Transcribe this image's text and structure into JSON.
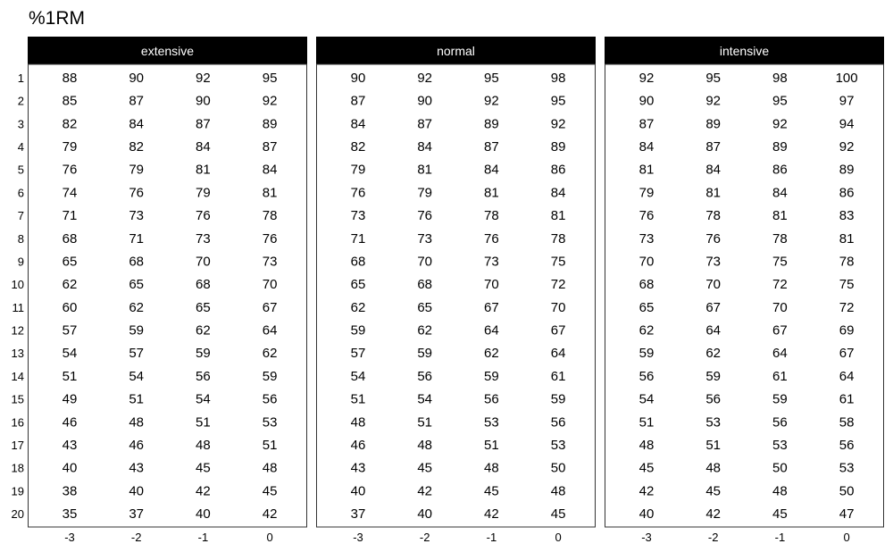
{
  "chart_data": {
    "type": "table",
    "title": "%1RM",
    "x_ticks": [
      "-3",
      "-2",
      "-1",
      "0"
    ],
    "y_ticks": [
      "1",
      "2",
      "3",
      "4",
      "5",
      "6",
      "7",
      "8",
      "9",
      "10",
      "11",
      "12",
      "13",
      "14",
      "15",
      "16",
      "17",
      "18",
      "19",
      "20"
    ],
    "strip_color": "#000000",
    "strip_text_color": "#ffffff",
    "panels": [
      {
        "name": "extensive",
        "values": [
          [
            88,
            90,
            92,
            95
          ],
          [
            85,
            87,
            90,
            92
          ],
          [
            82,
            84,
            87,
            89
          ],
          [
            79,
            82,
            84,
            87
          ],
          [
            76,
            79,
            81,
            84
          ],
          [
            74,
            76,
            79,
            81
          ],
          [
            71,
            73,
            76,
            78
          ],
          [
            68,
            71,
            73,
            76
          ],
          [
            65,
            68,
            70,
            73
          ],
          [
            62,
            65,
            68,
            70
          ],
          [
            60,
            62,
            65,
            67
          ],
          [
            57,
            59,
            62,
            64
          ],
          [
            54,
            57,
            59,
            62
          ],
          [
            51,
            54,
            56,
            59
          ],
          [
            49,
            51,
            54,
            56
          ],
          [
            46,
            48,
            51,
            53
          ],
          [
            43,
            46,
            48,
            51
          ],
          [
            40,
            43,
            45,
            48
          ],
          [
            38,
            40,
            42,
            45
          ],
          [
            35,
            37,
            40,
            42
          ]
        ]
      },
      {
        "name": "normal",
        "values": [
          [
            90,
            92,
            95,
            98
          ],
          [
            87,
            90,
            92,
            95
          ],
          [
            84,
            87,
            89,
            92
          ],
          [
            82,
            84,
            87,
            89
          ],
          [
            79,
            81,
            84,
            86
          ],
          [
            76,
            79,
            81,
            84
          ],
          [
            73,
            76,
            78,
            81
          ],
          [
            71,
            73,
            76,
            78
          ],
          [
            68,
            70,
            73,
            75
          ],
          [
            65,
            68,
            70,
            72
          ],
          [
            62,
            65,
            67,
            70
          ],
          [
            59,
            62,
            64,
            67
          ],
          [
            57,
            59,
            62,
            64
          ],
          [
            54,
            56,
            59,
            61
          ],
          [
            51,
            54,
            56,
            59
          ],
          [
            48,
            51,
            53,
            56
          ],
          [
            46,
            48,
            51,
            53
          ],
          [
            43,
            45,
            48,
            50
          ],
          [
            40,
            42,
            45,
            48
          ],
          [
            37,
            40,
            42,
            45
          ]
        ]
      },
      {
        "name": "intensive",
        "values": [
          [
            92,
            95,
            98,
            100
          ],
          [
            90,
            92,
            95,
            97
          ],
          [
            87,
            89,
            92,
            94
          ],
          [
            84,
            87,
            89,
            92
          ],
          [
            81,
            84,
            86,
            89
          ],
          [
            79,
            81,
            84,
            86
          ],
          [
            76,
            78,
            81,
            83
          ],
          [
            73,
            76,
            78,
            81
          ],
          [
            70,
            73,
            75,
            78
          ],
          [
            68,
            70,
            72,
            75
          ],
          [
            65,
            67,
            70,
            72
          ],
          [
            62,
            64,
            67,
            69
          ],
          [
            59,
            62,
            64,
            67
          ],
          [
            56,
            59,
            61,
            64
          ],
          [
            54,
            56,
            59,
            61
          ],
          [
            51,
            53,
            56,
            58
          ],
          [
            48,
            51,
            53,
            56
          ],
          [
            45,
            48,
            50,
            53
          ],
          [
            42,
            45,
            48,
            50
          ],
          [
            40,
            42,
            45,
            47
          ]
        ]
      }
    ]
  }
}
